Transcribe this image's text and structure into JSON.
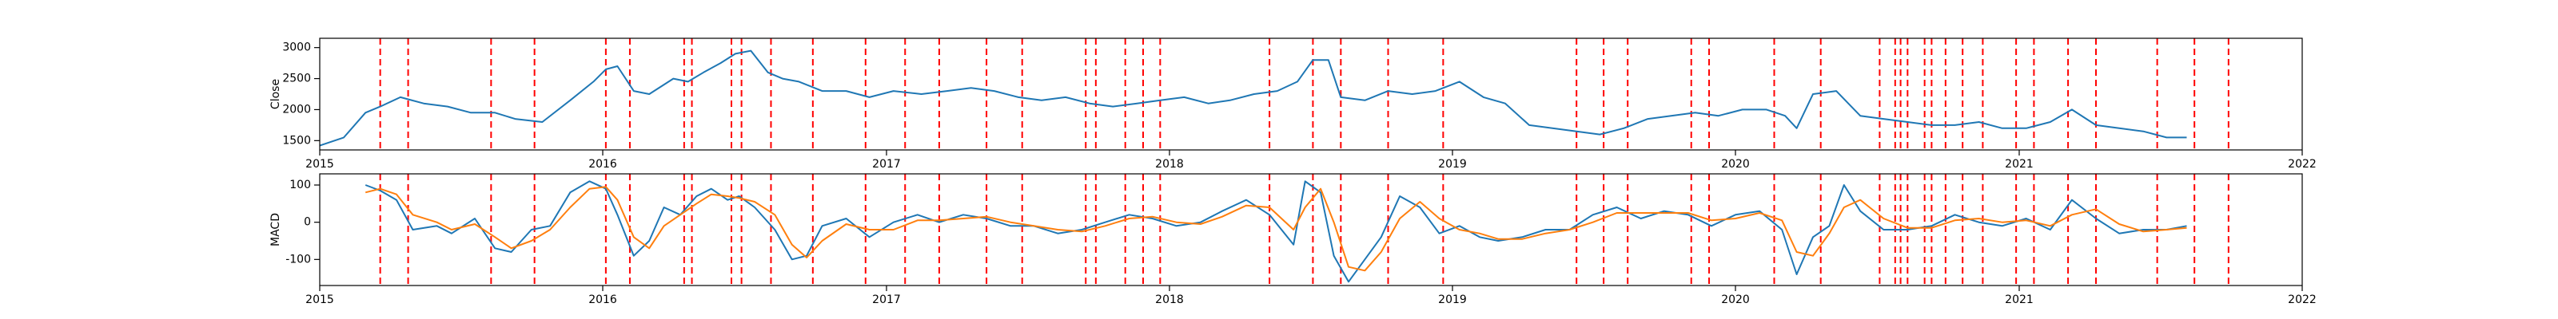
{
  "chart_data": [
    {
      "type": "line",
      "name": "close-panel",
      "ylabel": "Close",
      "xlabel": "",
      "xlim": [
        "2015-01-01",
        "2022-01-01"
      ],
      "ylim": [
        1350,
        3150
      ],
      "xticks": [
        "2015",
        "2016",
        "2017",
        "2018",
        "2019",
        "2020",
        "2021",
        "2022"
      ],
      "yticks": [
        1500,
        2000,
        2500,
        3000
      ],
      "line_color": "#1f77b4",
      "series": [
        {
          "x": [
            "2015-01-01",
            "2015-02-01",
            "2015-03-01",
            "2015-03-20",
            "2015-04-15",
            "2015-05-15",
            "2015-06-15",
            "2015-07-15",
            "2015-08-15",
            "2015-09-10",
            "2015-10-15",
            "2015-11-20",
            "2015-12-20",
            "2016-01-05",
            "2016-01-20",
            "2016-02-10",
            "2016-03-01",
            "2016-04-01",
            "2016-04-20",
            "2016-05-10",
            "2016-06-01",
            "2016-06-20",
            "2016-07-10",
            "2016-08-01",
            "2016-08-20",
            "2016-09-10",
            "2016-10-10",
            "2016-11-10",
            "2016-12-10",
            "2017-01-10",
            "2017-02-15",
            "2017-03-20",
            "2017-04-20",
            "2017-05-20",
            "2017-06-20",
            "2017-07-20",
            "2017-08-20",
            "2017-09-20",
            "2017-10-20",
            "2017-11-20",
            "2017-12-20",
            "2018-01-20",
            "2018-02-20",
            "2018-03-20",
            "2018-04-20",
            "2018-05-20",
            "2018-06-15",
            "2018-07-05",
            "2018-07-25",
            "2018-08-10",
            "2018-09-10",
            "2018-10-10",
            "2018-11-10",
            "2018-12-10",
            "2019-01-10",
            "2019-02-10",
            "2019-03-10",
            "2019-04-10",
            "2019-05-10",
            "2019-06-10",
            "2019-07-10",
            "2019-08-10",
            "2019-09-10",
            "2019-10-10",
            "2019-11-10",
            "2019-12-10",
            "2020-01-10",
            "2020-02-10",
            "2020-03-05",
            "2020-03-20",
            "2020-04-10",
            "2020-05-10",
            "2020-06-10",
            "2020-07-10",
            "2020-08-10",
            "2020-09-10",
            "2020-10-10",
            "2020-11-10",
            "2020-12-10",
            "2021-01-10",
            "2021-02-10",
            "2021-03-10",
            "2021-04-10",
            "2021-05-10",
            "2021-06-10",
            "2021-07-10",
            "2021-08-05"
          ],
          "values": [
            1420,
            1550,
            1950,
            2050,
            2200,
            2100,
            2050,
            1950,
            1950,
            1850,
            1800,
            2150,
            2450,
            2650,
            2700,
            2300,
            2250,
            2500,
            2450,
            2600,
            2750,
            2900,
            2950,
            2600,
            2500,
            2450,
            2300,
            2300,
            2200,
            2300,
            2250,
            2300,
            2350,
            2300,
            2200,
            2150,
            2200,
            2100,
            2050,
            2100,
            2150,
            2200,
            2100,
            2150,
            2250,
            2300,
            2450,
            2800,
            2800,
            2200,
            2150,
            2300,
            2250,
            2300,
            2450,
            2200,
            2100,
            1750,
            1700,
            1650,
            1600,
            1700,
            1850,
            1900,
            1950,
            1900,
            2000,
            2000,
            1900,
            1700,
            2250,
            2300,
            1900,
            1850,
            1800,
            1750,
            1750,
            1800,
            1700,
            1700,
            1800,
            2000,
            1750,
            1700,
            1650,
            1550,
            1550
          ]
        }
      ]
    },
    {
      "type": "line",
      "name": "macd-panel",
      "ylabel": "MACD",
      "xlabel": "",
      "xlim": [
        "2015-01-01",
        "2022-01-01"
      ],
      "ylim": [
        -170,
        130
      ],
      "xticks": [
        "2015",
        "2016",
        "2017",
        "2018",
        "2019",
        "2020",
        "2021",
        "2022"
      ],
      "yticks": [
        -100,
        0,
        100
      ],
      "series": [
        {
          "color": "#1f77b4",
          "x": [
            "2015-03-01",
            "2015-03-20",
            "2015-04-10",
            "2015-05-01",
            "2015-06-01",
            "2015-06-20",
            "2015-07-20",
            "2015-08-15",
            "2015-09-05",
            "2015-10-01",
            "2015-10-25",
            "2015-11-20",
            "2015-12-15",
            "2016-01-05",
            "2016-01-20",
            "2016-02-10",
            "2016-03-01",
            "2016-03-20",
            "2016-04-10",
            "2016-05-01",
            "2016-05-20",
            "2016-06-10",
            "2016-06-25",
            "2016-07-15",
            "2016-08-10",
            "2016-09-01",
            "2016-09-20",
            "2016-10-10",
            "2016-11-10",
            "2016-12-10",
            "2017-01-10",
            "2017-02-10",
            "2017-03-10",
            "2017-04-10",
            "2017-05-10",
            "2017-06-10",
            "2017-07-10",
            "2017-08-10",
            "2017-09-10",
            "2017-10-10",
            "2017-11-10",
            "2017-12-10",
            "2018-01-10",
            "2018-02-10",
            "2018-03-10",
            "2018-04-10",
            "2018-05-10",
            "2018-06-10",
            "2018-06-25",
            "2018-07-15",
            "2018-08-01",
            "2018-08-20",
            "2018-09-10",
            "2018-10-01",
            "2018-10-25",
            "2018-11-20",
            "2018-12-15",
            "2019-01-10",
            "2019-02-05",
            "2019-03-01",
            "2019-04-01",
            "2019-05-01",
            "2019-06-01",
            "2019-07-01",
            "2019-08-01",
            "2019-09-01",
            "2019-10-01",
            "2019-11-01",
            "2019-12-01",
            "2020-01-01",
            "2020-02-01",
            "2020-03-01",
            "2020-03-20",
            "2020-04-10",
            "2020-05-01",
            "2020-05-20",
            "2020-06-10",
            "2020-07-10",
            "2020-08-10",
            "2020-09-10",
            "2020-10-10",
            "2020-11-10",
            "2020-12-10",
            "2021-01-10",
            "2021-02-10",
            "2021-03-10",
            "2021-04-10",
            "2021-05-10",
            "2021-06-10",
            "2021-07-10",
            "2021-08-05"
          ],
          "values": [
            100,
            85,
            60,
            -20,
            -10,
            -30,
            10,
            -70,
            -80,
            -20,
            -10,
            80,
            110,
            90,
            20,
            -90,
            -50,
            40,
            20,
            70,
            90,
            60,
            70,
            40,
            -20,
            -100,
            -90,
            -10,
            10,
            -40,
            0,
            20,
            0,
            20,
            10,
            -10,
            -10,
            -30,
            -20,
            0,
            20,
            10,
            -10,
            0,
            30,
            60,
            20,
            -60,
            110,
            80,
            -90,
            -160,
            -100,
            -40,
            70,
            40,
            -30,
            -10,
            -40,
            -50,
            -40,
            -20,
            -20,
            20,
            40,
            10,
            30,
            20,
            -10,
            20,
            30,
            -20,
            -140,
            -40,
            -10,
            100,
            30,
            -20,
            -20,
            -10,
            20,
            0,
            -10,
            10,
            -20,
            60,
            10,
            -30,
            -20,
            -20,
            -10
          ]
        },
        {
          "color": "#ff7f0e",
          "x": [
            "2015-03-01",
            "2015-03-20",
            "2015-04-10",
            "2015-05-01",
            "2015-06-01",
            "2015-06-20",
            "2015-07-20",
            "2015-08-15",
            "2015-09-05",
            "2015-10-01",
            "2015-10-25",
            "2015-11-20",
            "2015-12-15",
            "2016-01-05",
            "2016-01-20",
            "2016-02-10",
            "2016-03-01",
            "2016-03-20",
            "2016-04-10",
            "2016-05-01",
            "2016-05-20",
            "2016-06-10",
            "2016-06-25",
            "2016-07-15",
            "2016-08-10",
            "2016-09-01",
            "2016-09-20",
            "2016-10-10",
            "2016-11-10",
            "2016-12-10",
            "2017-01-10",
            "2017-02-10",
            "2017-03-10",
            "2017-04-10",
            "2017-05-10",
            "2017-06-10",
            "2017-07-10",
            "2017-08-10",
            "2017-09-10",
            "2017-10-10",
            "2017-11-10",
            "2017-12-10",
            "2018-01-10",
            "2018-02-10",
            "2018-03-10",
            "2018-04-10",
            "2018-05-10",
            "2018-06-10",
            "2018-06-25",
            "2018-07-15",
            "2018-08-01",
            "2018-08-20",
            "2018-09-10",
            "2018-10-01",
            "2018-10-25",
            "2018-11-20",
            "2018-12-15",
            "2019-01-10",
            "2019-02-05",
            "2019-03-01",
            "2019-04-01",
            "2019-05-01",
            "2019-06-01",
            "2019-07-01",
            "2019-08-01",
            "2019-09-01",
            "2019-10-01",
            "2019-11-01",
            "2019-12-01",
            "2020-01-01",
            "2020-02-01",
            "2020-03-01",
            "2020-03-20",
            "2020-04-10",
            "2020-05-01",
            "2020-05-20",
            "2020-06-10",
            "2020-07-10",
            "2020-08-10",
            "2020-09-10",
            "2020-10-10",
            "2020-11-10",
            "2020-12-10",
            "2021-01-10",
            "2021-02-10",
            "2021-03-10",
            "2021-04-10",
            "2021-05-10",
            "2021-06-10",
            "2021-07-10",
            "2021-08-05"
          ],
          "values": [
            80,
            90,
            75,
            20,
            0,
            -20,
            -5,
            -40,
            -70,
            -50,
            -20,
            40,
            90,
            95,
            60,
            -40,
            -70,
            -10,
            20,
            50,
            75,
            70,
            65,
            55,
            20,
            -60,
            -95,
            -50,
            -5,
            -20,
            -20,
            5,
            5,
            10,
            15,
            0,
            -10,
            -20,
            -25,
            -10,
            10,
            15,
            0,
            -5,
            15,
            45,
            40,
            -20,
            40,
            90,
            0,
            -120,
            -130,
            -80,
            10,
            55,
            10,
            -20,
            -30,
            -45,
            -45,
            -30,
            -20,
            0,
            25,
            25,
            25,
            25,
            5,
            10,
            25,
            5,
            -80,
            -90,
            -30,
            40,
            60,
            10,
            -15,
            -15,
            5,
            10,
            0,
            5,
            -10,
            20,
            35,
            -5,
            -25,
            -20,
            -15
          ]
        }
      ]
    },
    {
      "type": "vlines",
      "name": "event-markers",
      "color": "#ff0000",
      "dates": [
        "2015-03-20",
        "2015-04-25",
        "2015-08-10",
        "2015-10-05",
        "2016-01-05",
        "2016-02-05",
        "2016-04-15",
        "2016-04-25",
        "2016-06-15",
        "2016-06-28",
        "2016-08-05",
        "2016-09-28",
        "2016-12-05",
        "2017-01-25",
        "2017-03-10",
        "2017-05-10",
        "2017-06-25",
        "2017-09-15",
        "2017-09-28",
        "2017-11-05",
        "2017-11-28",
        "2017-12-20",
        "2018-05-10",
        "2018-07-05",
        "2018-08-10",
        "2018-10-10",
        "2018-12-20",
        "2019-06-10",
        "2019-07-15",
        "2019-08-15",
        "2019-11-05",
        "2019-11-28",
        "2020-02-20",
        "2020-04-20",
        "2020-07-05",
        "2020-07-25",
        "2020-08-01",
        "2020-08-10",
        "2020-09-01",
        "2020-09-10",
        "2020-09-28",
        "2020-10-20",
        "2020-11-15",
        "2020-12-28",
        "2021-01-20",
        "2021-03-05",
        "2021-04-10",
        "2021-06-28",
        "2021-08-15",
        "2021-09-28"
      ]
    }
  ]
}
